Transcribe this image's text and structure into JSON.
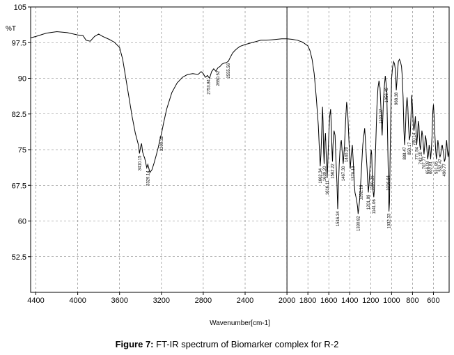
{
  "caption": {
    "prefix": "Figure 7:",
    "text": "FT-IR spectrum of Biomarker complex for R-2"
  },
  "chart_data": {
    "type": "line",
    "title": "",
    "xlabel": "Wavenumber[cm-1]",
    "ylabel": "%T",
    "xlim": [
      4450,
      450
    ],
    "ylim": [
      45,
      105
    ],
    "x_reversed": true,
    "grid": true,
    "grid_style": "dashed",
    "x_ticks": [
      4400,
      4000,
      3600,
      3200,
      2800,
      2400,
      2000,
      1800,
      1600,
      1400,
      1200,
      1000,
      800,
      600
    ],
    "y_ticks": [
      105,
      97.5,
      90,
      82.5,
      75,
      67.5,
      60,
      52.5
    ],
    "y_tick_labels": [
      "105",
      "97.5",
      "90",
      "82.5",
      "75",
      "67.5",
      "60",
      "52.5"
    ],
    "vertical_line_x": 2000,
    "line_color": "#000000",
    "series": [
      {
        "points": [
          [
            4450,
            98.5
          ],
          [
            4400,
            98.8
          ],
          [
            4300,
            99.5
          ],
          [
            4200,
            99.8
          ],
          [
            4100,
            99.6
          ],
          [
            4000,
            99.1
          ],
          [
            3950,
            99.0
          ],
          [
            3920,
            98.0
          ],
          [
            3880,
            97.8
          ],
          [
            3840,
            98.8
          ],
          [
            3800,
            99.3
          ],
          [
            3760,
            98.8
          ],
          [
            3700,
            98.2
          ],
          [
            3650,
            97.6
          ],
          [
            3600,
            96.5
          ],
          [
            3570,
            94.0
          ],
          [
            3540,
            90.0
          ],
          [
            3510,
            86.0
          ],
          [
            3480,
            82.0
          ],
          [
            3450,
            78.5
          ],
          [
            3420,
            76.0
          ],
          [
            3410,
            74.2
          ],
          [
            3400,
            75.5
          ],
          [
            3390,
            76.3
          ],
          [
            3380,
            74.5
          ],
          [
            3370,
            73.8
          ],
          [
            3360,
            73.2
          ],
          [
            3340,
            71.2
          ],
          [
            3330,
            71.9
          ],
          [
            3310,
            70.2
          ],
          [
            3290,
            70.8
          ],
          [
            3270,
            72.2
          ],
          [
            3250,
            73.8
          ],
          [
            3230,
            75.5
          ],
          [
            3210,
            77.5
          ],
          [
            3200,
            78.3
          ],
          [
            3180,
            80.5
          ],
          [
            3150,
            83.5
          ],
          [
            3100,
            87.0
          ],
          [
            3050,
            89.0
          ],
          [
            3000,
            90.2
          ],
          [
            2950,
            90.8
          ],
          [
            2900,
            91.0
          ],
          [
            2850,
            90.8
          ],
          [
            2820,
            91.4
          ],
          [
            2800,
            91.0
          ],
          [
            2780,
            90.2
          ],
          [
            2760,
            90.6
          ],
          [
            2740,
            90.0
          ],
          [
            2720,
            91.4
          ],
          [
            2700,
            92.0
          ],
          [
            2680,
            91.5
          ],
          [
            2660,
            92.2
          ],
          [
            2640,
            92.5
          ],
          [
            2620,
            93.0
          ],
          [
            2600,
            93.2
          ],
          [
            2580,
            93.3
          ],
          [
            2560,
            93.6
          ],
          [
            2540,
            94.5
          ],
          [
            2520,
            95.3
          ],
          [
            2500,
            95.8
          ],
          [
            2480,
            96.2
          ],
          [
            2450,
            96.7
          ],
          [
            2400,
            97.1
          ],
          [
            2350,
            97.4
          ],
          [
            2300,
            97.7
          ],
          [
            2250,
            98.0
          ],
          [
            2200,
            98.0
          ],
          [
            2150,
            98.1
          ],
          [
            2100,
            98.2
          ],
          [
            2050,
            98.3
          ],
          [
            2000,
            98.3
          ],
          [
            1950,
            98.2
          ],
          [
            1900,
            98.0
          ],
          [
            1850,
            97.6
          ],
          [
            1800,
            96.8
          ],
          [
            1780,
            95.8
          ],
          [
            1760,
            94.0
          ],
          [
            1740,
            91.0
          ],
          [
            1720,
            86.0
          ],
          [
            1700,
            80.0
          ],
          [
            1690,
            75.0
          ],
          [
            1682,
            71.5
          ],
          [
            1675,
            74.0
          ],
          [
            1667,
            79.0
          ],
          [
            1660,
            84.0
          ],
          [
            1655,
            81.0
          ],
          [
            1650,
            75.0
          ],
          [
            1645,
            72.0
          ],
          [
            1640,
            76.0
          ],
          [
            1632,
            78.5
          ],
          [
            1625,
            74.0
          ],
          [
            1616,
            69.0
          ],
          [
            1610,
            72.0
          ],
          [
            1600,
            78.0
          ],
          [
            1592,
            82.0
          ],
          [
            1583,
            83.5
          ],
          [
            1576,
            80.0
          ],
          [
            1570,
            75.0
          ],
          [
            1565,
            72.5
          ],
          [
            1560,
            76.0
          ],
          [
            1550,
            79.0
          ],
          [
            1540,
            78.0
          ],
          [
            1530,
            72.0
          ],
          [
            1522,
            68.0
          ],
          [
            1515,
            62.5
          ],
          [
            1510,
            66.0
          ],
          [
            1500,
            72.0
          ],
          [
            1490,
            76.0
          ],
          [
            1480,
            77.0
          ],
          [
            1470,
            74.0
          ],
          [
            1462,
            72.0
          ],
          [
            1450,
            76.0
          ],
          [
            1440,
            81.0
          ],
          [
            1430,
            85.0
          ],
          [
            1420,
            83.0
          ],
          [
            1410,
            78.0
          ],
          [
            1400,
            73.0
          ],
          [
            1395,
            71.0
          ],
          [
            1385,
            74.0
          ],
          [
            1375,
            76.0
          ],
          [
            1365,
            72.0
          ],
          [
            1357,
            68.0
          ],
          [
            1350,
            66.0
          ],
          [
            1340,
            65.0
          ],
          [
            1335,
            64.5
          ],
          [
            1325,
            63.0
          ],
          [
            1320,
            61.5
          ],
          [
            1312,
            63.0
          ],
          [
            1303,
            65.0
          ],
          [
            1295,
            68.0
          ],
          [
            1285,
            72.0
          ],
          [
            1275,
            76.0
          ],
          [
            1265,
            78.0
          ],
          [
            1257,
            79.5
          ],
          [
            1250,
            77.0
          ],
          [
            1240,
            73.0
          ],
          [
            1234,
            71.0
          ],
          [
            1228,
            68.0
          ],
          [
            1222,
            66.0
          ],
          [
            1215,
            68.0
          ],
          [
            1205,
            72.0
          ],
          [
            1195,
            75.0
          ],
          [
            1190,
            74.0
          ],
          [
            1185,
            70.0
          ],
          [
            1180,
            67.0
          ],
          [
            1170,
            65.0
          ],
          [
            1165,
            66.5
          ],
          [
            1160,
            70.0
          ],
          [
            1150,
            77.0
          ],
          [
            1140,
            84.0
          ],
          [
            1130,
            88.0
          ],
          [
            1120,
            89.5
          ],
          [
            1110,
            88.0
          ],
          [
            1102,
            84.0
          ],
          [
            1095,
            80.0
          ],
          [
            1090,
            78.0
          ],
          [
            1085,
            81.0
          ],
          [
            1078,
            85.0
          ],
          [
            1070,
            88.0
          ],
          [
            1060,
            90.5
          ],
          [
            1050,
            88.5
          ],
          [
            1045,
            86.0
          ],
          [
            1040,
            80.0
          ],
          [
            1032,
            70.0
          ],
          [
            1025,
            62.0
          ],
          [
            1020,
            64.0
          ],
          [
            1015,
            72.0
          ],
          [
            1008,
            82.0
          ],
          [
            1000,
            90.0
          ],
          [
            990,
            92.5
          ],
          [
            980,
            93.5
          ],
          [
            972,
            93.0
          ],
          [
            965,
            92.0
          ],
          [
            960,
            90.0
          ],
          [
            955,
            87.5
          ],
          [
            950,
            89.0
          ],
          [
            945,
            91.0
          ],
          [
            935,
            93.5
          ],
          [
            925,
            94.0
          ],
          [
            915,
            93.5
          ],
          [
            905,
            92.5
          ],
          [
            900,
            91.0
          ],
          [
            890,
            86.0
          ],
          [
            882,
            79.0
          ],
          [
            875,
            76.0
          ],
          [
            868,
            79.0
          ],
          [
            860,
            84.0
          ],
          [
            852,
            86.0
          ],
          [
            845,
            84.0
          ],
          [
            838,
            80.0
          ],
          [
            830,
            77.0
          ],
          [
            822,
            78.0
          ],
          [
            815,
            82.0
          ],
          [
            808,
            86.5
          ],
          [
            800,
            84.0
          ],
          [
            793,
            80.0
          ],
          [
            786,
            79.0
          ],
          [
            780,
            80.0
          ],
          [
            773,
            82.0
          ],
          [
            766,
            79.0
          ],
          [
            760,
            76.0
          ],
          [
            752,
            78.0
          ],
          [
            745,
            81.0
          ],
          [
            738,
            80.0
          ],
          [
            731,
            76.0
          ],
          [
            724,
            75.0
          ],
          [
            717,
            77.0
          ],
          [
            710,
            79.0
          ],
          [
            703,
            78.0
          ],
          [
            697,
            76.0
          ],
          [
            690,
            74.0
          ],
          [
            683,
            76.0
          ],
          [
            676,
            78.0
          ],
          [
            669,
            77.0
          ],
          [
            662,
            75.0
          ],
          [
            655,
            73.0
          ],
          [
            648,
            74.0
          ],
          [
            641,
            76.0
          ],
          [
            634,
            75.0
          ],
          [
            627,
            73.0
          ],
          [
            620,
            75.0
          ],
          [
            613,
            78.0
          ],
          [
            606,
            83.0
          ],
          [
            600,
            84.5
          ],
          [
            593,
            82.0
          ],
          [
            586,
            78.0
          ],
          [
            579,
            75.0
          ],
          [
            572,
            73.0
          ],
          [
            565,
            74.5
          ],
          [
            558,
            77.0
          ],
          [
            551,
            76.0
          ],
          [
            544,
            74.0
          ],
          [
            537,
            73.5
          ],
          [
            530,
            74.0
          ],
          [
            523,
            75.5
          ],
          [
            516,
            76.0
          ],
          [
            509,
            75.0
          ],
          [
            502,
            74.0
          ],
          [
            495,
            72.5
          ],
          [
            488,
            73.0
          ],
          [
            481,
            75.0
          ],
          [
            474,
            77.0
          ],
          [
            467,
            75.0
          ],
          [
            460,
            73.5
          ],
          [
            453,
            74.5
          ],
          [
            450,
            75.0
          ]
        ]
      }
    ],
    "peak_labels": [
      {
        "text": "3410.15",
        "x": 3410,
        "y": 74.2
      },
      {
        "text": "3329.14",
        "x": 3329,
        "y": 71.0
      },
      {
        "text": "3200.32",
        "x": 3198,
        "y": 78.3
      },
      {
        "text": "2753.84",
        "x": 2750,
        "y": 90.2
      },
      {
        "text": "2650.52",
        "x": 2660,
        "y": 92.0
      },
      {
        "text": "2555.56",
        "x": 2560,
        "y": 93.6
      },
      {
        "text": "1662.34",
        "x": 1682,
        "y": 71.5
      },
      {
        "text": "1639.20",
        "x": 1642,
        "y": 72.0
      },
      {
        "text": "1616.11",
        "x": 1616,
        "y": 69.0
      },
      {
        "text": "1562.22",
        "x": 1564,
        "y": 72.5
      },
      {
        "text": "1516.34",
        "x": 1515,
        "y": 62.5
      },
      {
        "text": "1467.30",
        "x": 1462,
        "y": 72.0
      },
      {
        "text": "1440.20",
        "x": 1432,
        "y": 76.0
      },
      {
        "text": "1370.13",
        "x": 1370,
        "y": 72.0
      },
      {
        "text": "1330.82",
        "x": 1320,
        "y": 61.5
      },
      {
        "text": "1292.18",
        "x": 1292,
        "y": 68.0
      },
      {
        "text": "1201.89",
        "x": 1222,
        "y": 66.0
      },
      {
        "text": "1150.25",
        "x": 1185,
        "y": 70.0
      },
      {
        "text": "1141.06",
        "x": 1170,
        "y": 65.0
      },
      {
        "text": "1103.07",
        "x": 1102,
        "y": 84.0
      },
      {
        "text": "1056.49",
        "x": 1050,
        "y": 88.5
      },
      {
        "text": "1016.64",
        "x": 1032,
        "y": 70.0
      },
      {
        "text": "1032.33",
        "x": 1025,
        "y": 62.0
      },
      {
        "text": "968.38",
        "x": 955,
        "y": 87.5
      },
      {
        "text": "888.47",
        "x": 875,
        "y": 76.0
      },
      {
        "text": "850.17",
        "x": 830,
        "y": 77.0
      },
      {
        "text": "780.14",
        "x": 786,
        "y": 79.0
      },
      {
        "text": "771.54",
        "x": 760,
        "y": 76.0
      },
      {
        "text": "742.10",
        "x": 724,
        "y": 75.0
      },
      {
        "text": "707.77",
        "x": 690,
        "y": 74.0
      },
      {
        "text": "656.08",
        "x": 655,
        "y": 73.0
      },
      {
        "text": "602.81",
        "x": 627,
        "y": 73.0
      },
      {
        "text": "531.85",
        "x": 572,
        "y": 73.0
      },
      {
        "text": "532.47",
        "x": 537,
        "y": 73.5
      },
      {
        "text": "490.77",
        "x": 495,
        "y": 72.5
      }
    ]
  }
}
